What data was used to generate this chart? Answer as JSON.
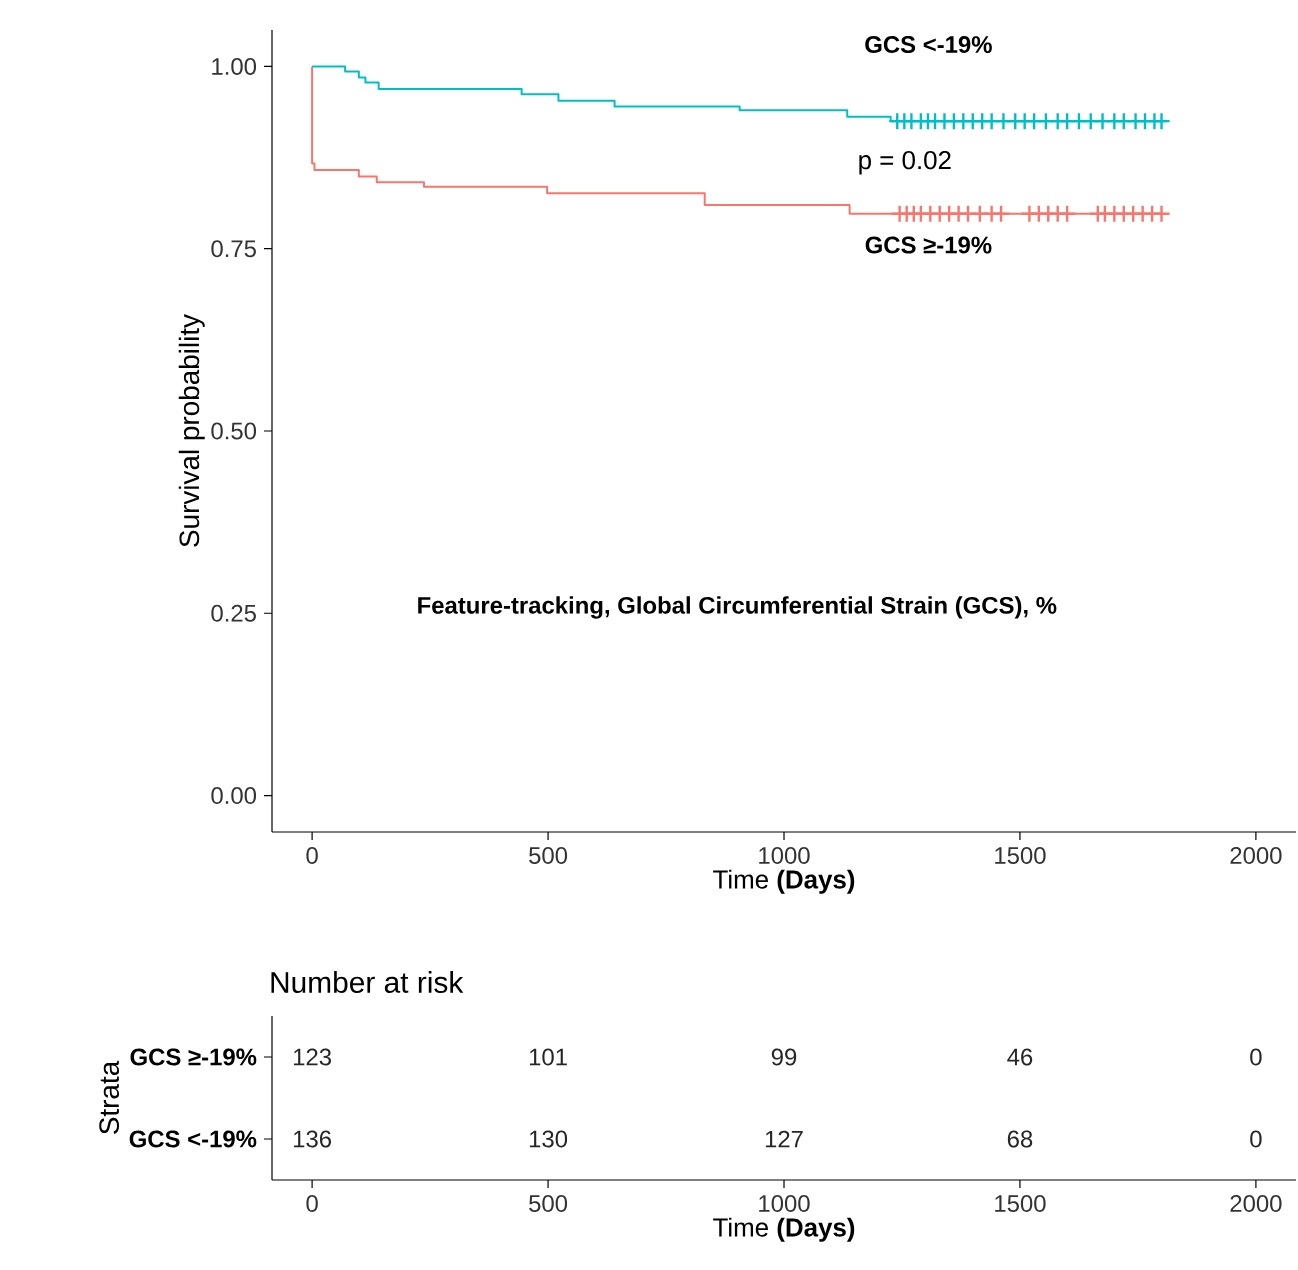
{
  "chart_data": [
    {
      "type": "step",
      "xlabel": "Time **(Days)**",
      "ylabel": "Survival probability",
      "xlim": [
        -85,
        2085
      ],
      "ylim": [
        -0.05,
        1.05
      ],
      "xticks": [
        0,
        500,
        1000,
        1500,
        2000
      ],
      "yticks": [
        {
          "value": 0,
          "label": "0.00"
        },
        {
          "value": 0.25,
          "label": "0.25"
        },
        {
          "value": 0.5,
          "label": "0.50"
        },
        {
          "value": 0.75,
          "label": "0.75"
        },
        {
          "value": 1,
          "label": "1.00"
        }
      ],
      "annotations": [
        "p = 0.02",
        "Feature-tracking, Global Circumferential Strain (GCS), %"
      ],
      "series": [
        {
          "name": "GCS ≥-19%",
          "color": "#f8766d",
          "x": [
            0,
            0,
            5,
            99,
            137,
            237,
            498,
            832,
            1139,
            1800
          ],
          "values": [
            1.0,
            0.867,
            0.858,
            0.849,
            0.841,
            0.835,
            0.826,
            0.81,
            0.798,
            0.798
          ]
        },
        {
          "name": "GCS <-19%",
          "color": "#00bfc4",
          "x": [
            0,
            70,
            99,
            113,
            141,
            444,
            522,
            641,
            906,
            1134,
            1226,
            1810
          ],
          "values": [
            1.0,
            0.993,
            0.985,
            0.978,
            0.969,
            0.962,
            0.953,
            0.945,
            0.94,
            0.931,
            0.925,
            0.925
          ]
        },
        {
          "type": "scatter",
          "marker": "cross",
          "color": "#f8766d",
          "x": [
            1245,
            1260,
            1275,
            1290,
            1310,
            1330,
            1350,
            1370,
            1390,
            1415,
            1440,
            1460,
            1520,
            1540,
            1560,
            1580,
            1600,
            1665,
            1680,
            1700,
            1720,
            1740,
            1760,
            1780,
            1800
          ],
          "values": [
            0.798,
            0.798,
            0.798,
            0.798,
            0.798,
            0.798,
            0.798,
            0.798,
            0.798,
            0.798,
            0.798,
            0.798,
            0.798,
            0.798,
            0.798,
            0.798,
            0.798,
            0.798,
            0.798,
            0.798,
            0.798,
            0.798,
            0.798,
            0.798,
            0.798
          ]
        },
        {
          "type": "scatter",
          "marker": "cross",
          "color": "#00bfc4",
          "x": [
            1240,
            1255,
            1270,
            1290,
            1305,
            1320,
            1340,
            1360,
            1380,
            1400,
            1420,
            1440,
            1465,
            1490,
            1510,
            1530,
            1555,
            1580,
            1600,
            1625,
            1650,
            1675,
            1700,
            1720,
            1745,
            1765,
            1785,
            1800
          ],
          "values": [
            0.925,
            0.925,
            0.925,
            0.925,
            0.925,
            0.925,
            0.925,
            0.925,
            0.925,
            0.925,
            0.925,
            0.925,
            0.925,
            0.925,
            0.925,
            0.925,
            0.925,
            0.925,
            0.925,
            0.925,
            0.925,
            0.925,
            0.925,
            0.925,
            0.925,
            0.925,
            0.925,
            0.925
          ]
        }
      ]
    },
    {
      "type": "heatmap",
      "title": "Number at risk",
      "xlabel": "Time **(Days)**",
      "ylabel": "Strata",
      "categories": [
        "0",
        "500",
        "1000",
        "1500",
        "2000"
      ],
      "y_categories": [
        "GCS ≥-19%",
        "GCS <-19%"
      ],
      "data_labels": true,
      "cells": [
        [
          123,
          101,
          99,
          46,
          0
        ],
        [
          136,
          130,
          127,
          68,
          0
        ]
      ]
    }
  ]
}
